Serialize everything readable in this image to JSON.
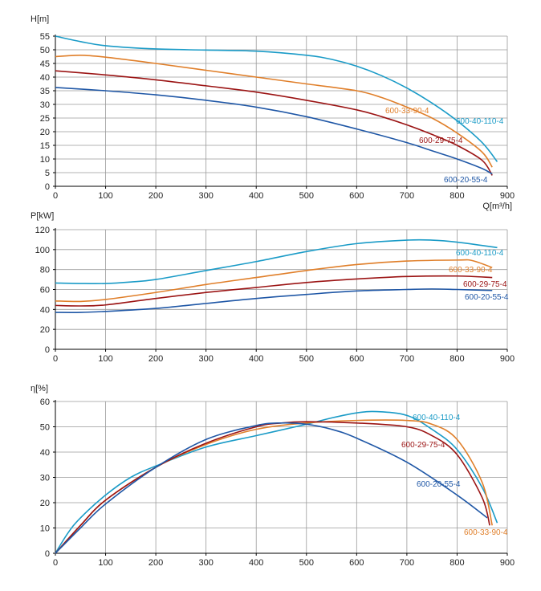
{
  "colors": {
    "600-40-110-4": "#1a9bc7",
    "600-33-90-4": "#e07f2a",
    "600-29-75-4": "#9b1414",
    "600-20-55-4": "#1f57a6"
  },
  "chart_data": [
    {
      "type": "line",
      "id": "head",
      "ylabel": "H[m]",
      "xlabel": "Q[m³/h]",
      "xlim": [
        0,
        900
      ],
      "ylim": [
        0,
        55
      ],
      "xticks": [
        0,
        100,
        200,
        300,
        400,
        500,
        600,
        700,
        800,
        900
      ],
      "yticks": [
        0,
        5,
        10,
        15,
        20,
        25,
        30,
        35,
        40,
        45,
        50,
        55
      ],
      "grid": true,
      "series": [
        {
          "name": "600-40-110-4",
          "x": [
            0,
            50,
            100,
            200,
            300,
            400,
            500,
            550,
            600,
            650,
            700,
            750,
            800,
            850,
            880
          ],
          "y": [
            55,
            53,
            51.5,
            50.3,
            49.9,
            49.5,
            48,
            46.5,
            44,
            40.5,
            36,
            30.5,
            24,
            16,
            9
          ]
        },
        {
          "name": "600-33-90-4",
          "x": [
            0,
            50,
            100,
            200,
            300,
            400,
            500,
            600,
            650,
            700,
            750,
            800,
            850,
            870
          ],
          "y": [
            47.5,
            48,
            47.3,
            45,
            42.5,
            40,
            37.5,
            35,
            32.5,
            29,
            25,
            19.5,
            12.5,
            7
          ]
        },
        {
          "name": "600-29-75-4",
          "x": [
            0,
            100,
            200,
            300,
            400,
            500,
            600,
            650,
            700,
            750,
            800,
            850,
            870
          ],
          "y": [
            42.3,
            40.8,
            39,
            36.8,
            34.5,
            31.5,
            28,
            25.5,
            22.5,
            19,
            15,
            9.5,
            4
          ]
        },
        {
          "name": "600-20-55-4",
          "x": [
            0,
            100,
            200,
            300,
            400,
            500,
            600,
            700,
            750,
            800,
            850,
            870
          ],
          "y": [
            36.2,
            35,
            33.5,
            31.5,
            29,
            25.5,
            21,
            16,
            13,
            10,
            6.5,
            4.5
          ]
        }
      ],
      "annotations": [
        "600-33-90-4",
        "600-40-110-4",
        "600-29-75-4",
        "600-20-55-4"
      ]
    },
    {
      "type": "line",
      "id": "power",
      "ylabel": "P[kW]",
      "xlabel": "",
      "xlim": [
        0,
        900
      ],
      "ylim": [
        0,
        120
      ],
      "xticks": [
        0,
        100,
        200,
        300,
        400,
        500,
        600,
        700,
        800,
        900
      ],
      "yticks": [
        0,
        20,
        40,
        60,
        80,
        100,
        120
      ],
      "grid": true,
      "series": [
        {
          "name": "600-40-110-4",
          "x": [
            0,
            50,
            100,
            150,
            200,
            300,
            400,
            500,
            600,
            700,
            750,
            800,
            880
          ],
          "y": [
            66.5,
            66,
            66,
            67.5,
            70,
            79,
            88,
            98,
            106,
            109.5,
            109.5,
            107.5,
            102
          ]
        },
        {
          "name": "600-33-90-4",
          "x": [
            0,
            50,
            100,
            200,
            300,
            400,
            500,
            600,
            700,
            800,
            830,
            870
          ],
          "y": [
            48.5,
            48,
            50,
            57,
            65,
            72,
            79,
            85,
            88.5,
            89.5,
            89,
            82
          ]
        },
        {
          "name": "600-29-75-4",
          "x": [
            0,
            50,
            100,
            200,
            300,
            400,
            500,
            600,
            700,
            800,
            870
          ],
          "y": [
            44,
            43.5,
            44.5,
            51,
            57,
            62,
            67,
            70.5,
            73,
            73.5,
            72
          ]
        },
        {
          "name": "600-20-55-4",
          "x": [
            0,
            50,
            100,
            200,
            300,
            400,
            500,
            600,
            700,
            750,
            800,
            870
          ],
          "y": [
            37,
            37,
            38,
            41,
            46,
            51,
            55,
            58.5,
            60,
            60.5,
            60,
            59
          ]
        }
      ],
      "annotations": [
        "600-40-110-4",
        "600-33-90-4",
        "600-29-75-4",
        "600-20-55-4"
      ]
    },
    {
      "type": "line",
      "id": "efficiency",
      "ylabel": "η[%]",
      "xlabel": "",
      "xlim": [
        0,
        900
      ],
      "ylim": [
        0,
        60
      ],
      "xticks": [
        0,
        100,
        200,
        300,
        400,
        500,
        600,
        700,
        800,
        900
      ],
      "yticks": [
        0,
        10,
        20,
        30,
        40,
        50,
        60
      ],
      "grid": true,
      "series": [
        {
          "name": "600-40-110-4",
          "x": [
            0,
            25,
            50,
            100,
            150,
            200,
            300,
            400,
            500,
            550,
            600,
            640,
            700,
            750,
            800,
            850,
            880
          ],
          "y": [
            0,
            8,
            14,
            23,
            30,
            34.5,
            42,
            46.5,
            51,
            53.5,
            55.5,
            56,
            54.5,
            49,
            41,
            26,
            12
          ]
        },
        {
          "name": "600-33-90-4",
          "x": [
            0,
            50,
            100,
            200,
            300,
            400,
            500,
            600,
            700,
            750,
            800,
            850,
            870
          ],
          "y": [
            0,
            11,
            21,
            34,
            43,
            49,
            51.5,
            52.5,
            52.5,
            51,
            45,
            28,
            11
          ]
        },
        {
          "name": "600-29-75-4",
          "x": [
            0,
            50,
            100,
            200,
            300,
            400,
            450,
            500,
            600,
            700,
            750,
            800,
            850,
            865
          ],
          "y": [
            0,
            11,
            21,
            34,
            43.5,
            50,
            51.5,
            52,
            51.5,
            50,
            46.5,
            39,
            22,
            11
          ]
        },
        {
          "name": "600-20-55-4",
          "x": [
            0,
            50,
            100,
            200,
            300,
            400,
            450,
            500,
            550,
            600,
            700,
            800,
            860
          ],
          "y": [
            0,
            10,
            19.5,
            34,
            45,
            50.5,
            51.5,
            51,
            49,
            45.5,
            36,
            23,
            14
          ]
        }
      ],
      "annotations": [
        "600-40-110-4",
        "600-29-75-4",
        "600-20-55-4",
        "600-33-90-4"
      ]
    }
  ]
}
